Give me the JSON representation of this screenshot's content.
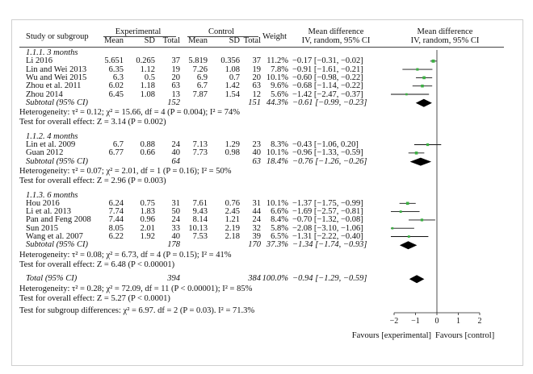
{
  "headers": {
    "study": "Study or subgroup",
    "experimental": "Experimental",
    "control": "Control",
    "mean": "Mean",
    "sd": "SD",
    "total": "Total",
    "weight": "Weight",
    "md": "Mean difference",
    "md_method": "IV, random, 95% CI"
  },
  "subgroups": [
    {
      "label": "1.1.1. 3 months",
      "studies": [
        {
          "name": "Li 2016",
          "e_mean": "5.651",
          "e_sd": "0.265",
          "e_n": "37",
          "c_mean": "5.819",
          "c_sd": "0.356",
          "c_n": "37",
          "weight": "11.2%",
          "ci_text": "−0.17 [−0.31, −0.02]",
          "md": -0.17,
          "lo": -0.31,
          "hi": -0.02,
          "w": 11.2
        },
        {
          "name": "Lin and Wei 2013",
          "e_mean": "6.35",
          "e_sd": "1.12",
          "e_n": "19",
          "c_mean": "7.26",
          "c_sd": "1.08",
          "c_n": "19",
          "weight": "7.8%",
          "ci_text": "−0.91 [−1.61, −0.21]",
          "md": -0.91,
          "lo": -1.61,
          "hi": -0.21,
          "w": 7.8
        },
        {
          "name": "Wu and Wei 2015",
          "e_mean": "6.3",
          "e_sd": "0.5",
          "e_n": "20",
          "c_mean": "6.9",
          "c_sd": "0.7",
          "c_n": "20",
          "weight": "10.1%",
          "ci_text": "−0.60 [−0.98, −0.22]",
          "md": -0.6,
          "lo": -0.98,
          "hi": -0.22,
          "w": 10.1
        },
        {
          "name": "Zhou et al. 2011",
          "e_mean": "6.02",
          "e_sd": "1.18",
          "e_n": "63",
          "c_mean": "6.7",
          "c_sd": "1.42",
          "c_n": "63",
          "weight": "9.6%",
          "ci_text": "−0.68 [−1.14, −0.22]",
          "md": -0.68,
          "lo": -1.14,
          "hi": -0.22,
          "w": 9.6
        },
        {
          "name": "Zhou 2014",
          "e_mean": "6.45",
          "e_sd": "1.08",
          "e_n": "13",
          "c_mean": "7.87",
          "c_sd": "1.54",
          "c_n": "12",
          "weight": "5.6%",
          "ci_text": "−1.42 [−2.47, −0.37]",
          "md": -1.42,
          "lo": -2.47,
          "hi": -0.37,
          "w": 5.6
        }
      ],
      "subtotal": {
        "label": "Subtotal (95% CI)",
        "e_n": "152",
        "c_n": "151",
        "weight": "44.3%",
        "ci_text": "−0.61 [−0.99, −0.23]",
        "md": -0.61,
        "lo": -0.99,
        "hi": -0.23
      },
      "heterogeneity": "Heterogeneity: τ² = 0.12; χ² = 15.66, df = 4 (P = 0.004); I² = 74%",
      "overall": "Test for overall effect: Z = 3.14 (P = 0.002)"
    },
    {
      "label": "1.1.2. 4 months",
      "studies": [
        {
          "name": "Lin et al. 2009",
          "e_mean": "6.7",
          "e_sd": "0.88",
          "e_n": "24",
          "c_mean": "7.13",
          "c_sd": "1.29",
          "c_n": "23",
          "weight": "8.3%",
          "ci_text": "−0.43 [−1.06, 0.20]",
          "md": -0.43,
          "lo": -1.06,
          "hi": 0.2,
          "w": 8.3
        },
        {
          "name": "Guan 2012",
          "e_mean": "6.77",
          "e_sd": "0.66",
          "e_n": "40",
          "c_mean": "7.73",
          "c_sd": "0.98",
          "c_n": "40",
          "weight": "10.1%",
          "ci_text": "−0.96 [−1.33, −0.59]",
          "md": -0.96,
          "lo": -1.33,
          "hi": -0.59,
          "w": 10.1
        }
      ],
      "subtotal": {
        "label": "Subtotal (95% CI)",
        "e_n": "64",
        "c_n": "63",
        "weight": "18.4%",
        "ci_text": "−0.76 [−1.26, −0.26]",
        "md": -0.76,
        "lo": -1.26,
        "hi": -0.26
      },
      "heterogeneity": "Heterogeneity: τ² = 0.07; χ² = 2.01, df = 1 (P = 0.16); I² = 50%",
      "overall": "Test for overall effect: Z = 2.96 (P = 0.003)"
    },
    {
      "label": "1.1.3. 6 months",
      "studies": [
        {
          "name": "Hou 2016",
          "e_mean": "6.24",
          "e_sd": "0.75",
          "e_n": "31",
          "c_mean": "7.61",
          "c_sd": "0.76",
          "c_n": "31",
          "weight": "10.1%",
          "ci_text": "−1.37 [−1.75, −0.99]",
          "md": -1.37,
          "lo": -1.75,
          "hi": -0.99,
          "w": 10.1
        },
        {
          "name": "Li et al. 2013",
          "e_mean": "7.74",
          "e_sd": "1.83",
          "e_n": "50",
          "c_mean": "9.43",
          "c_sd": "2.45",
          "c_n": "44",
          "weight": "6.6%",
          "ci_text": "−1.69 [−2.57, −0.81]",
          "md": -1.69,
          "lo": -2.57,
          "hi": -0.81,
          "w": 6.6
        },
        {
          "name": "Pan and Feng 2008",
          "e_mean": "7.44",
          "e_sd": "0.96",
          "e_n": "24",
          "c_mean": "8.14",
          "c_sd": "1.21",
          "c_n": "24",
          "weight": "8.4%",
          "ci_text": "−0.70 [−1.32, −0.08]",
          "md": -0.7,
          "lo": -1.32,
          "hi": -0.08,
          "w": 8.4
        },
        {
          "name": "Sun 2015",
          "e_mean": "8.05",
          "e_sd": "2.01",
          "e_n": "33",
          "c_mean": "10.13",
          "c_sd": "2.19",
          "c_n": "32",
          "weight": "5.8%",
          "ci_text": "−2.08 [−3.10, −1.06]",
          "md": -2.08,
          "lo": -3.1,
          "hi": -1.06,
          "w": 5.8
        },
        {
          "name": "Wang et al. 2007",
          "e_mean": "6.22",
          "e_sd": "1.92",
          "e_n": "40",
          "c_mean": "7.53",
          "c_sd": "2.18",
          "c_n": "39",
          "weight": "6.5%",
          "ci_text": "−1.31 [−2.22, −0.40]",
          "md": -1.31,
          "lo": -2.22,
          "hi": -0.4,
          "w": 6.5
        }
      ],
      "subtotal": {
        "label": "Subtotal (95% CI)",
        "e_n": "178",
        "c_n": "170",
        "weight": "37.3%",
        "ci_text": "−1.34 [−1.74, −0.93]",
        "md": -1.34,
        "lo": -1.74,
        "hi": -0.93
      },
      "heterogeneity": "Heterogeneity: τ² = 0.08; χ² = 6.73, df = 4 (P = 0.15); I² = 41%",
      "overall": "Test for overall effect: Z = 6.48 (P < 0.00001)"
    }
  ],
  "total": {
    "label": "Total (95% CI)",
    "e_n": "394",
    "c_n": "384",
    "weight": "100.0%",
    "ci_text": "−0.94 [−1.29, −0.59]",
    "md": -0.94,
    "lo": -1.29,
    "hi": -0.59
  },
  "total_heterogeneity": "Heterogeneity: τ² = 0.28; χ² = 72.09, df = 11 (P < 0.00001); I² = 85%",
  "total_overall": "Test for overall effect: Z = 5.27 (P < 0.0001)",
  "subgroup_diff": "Test for subgroup differences: χ² = 6.97. df = 2 (P = 0.03). I² = 71.3%",
  "axis": {
    "ticks": [
      "−2",
      "−1",
      "0",
      "1",
      "2"
    ],
    "favours_left": "Favours [experimental]",
    "favours_right": "Favours [control]"
  },
  "colors": {
    "study_marker": "#3cb043",
    "line": "#111111",
    "diamond": "#000000"
  },
  "chart_data": {
    "type": "forest",
    "measure": "Mean difference (IV, random, 95% CI)",
    "xlim": [
      -2,
      2
    ],
    "xticks": [
      -2,
      -1,
      0,
      1,
      2
    ]
  }
}
